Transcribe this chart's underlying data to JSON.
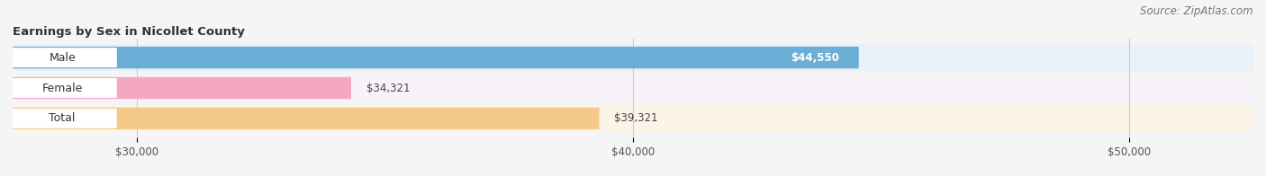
{
  "title": "Earnings by Sex in Nicollet County",
  "source": "Source: ZipAtlas.com",
  "categories": [
    "Male",
    "Female",
    "Total"
  ],
  "values": [
    44550,
    34321,
    39321
  ],
  "bar_colors": [
    "#6baed6",
    "#f4a8c0",
    "#f5c98a"
  ],
  "row_bg_colors": [
    "#e8eef4",
    "#f5f5f5",
    "#ece8f0"
  ],
  "xlim_min": 27500,
  "xlim_max": 52500,
  "xticks": [
    30000,
    40000,
    50000
  ],
  "xtick_labels": [
    "$30,000",
    "$40,000",
    "$50,000"
  ],
  "title_fontsize": 9.5,
  "source_fontsize": 8.5,
  "bar_height": 0.72,
  "background_color": "#f0f0f0",
  "bar_bg_color": "#e0e0e0",
  "figsize": [
    14.06,
    1.96
  ],
  "dpi": 100,
  "label_inside": [
    true,
    false,
    false
  ],
  "value_label_colors": [
    "white",
    "#444444",
    "#444444"
  ]
}
